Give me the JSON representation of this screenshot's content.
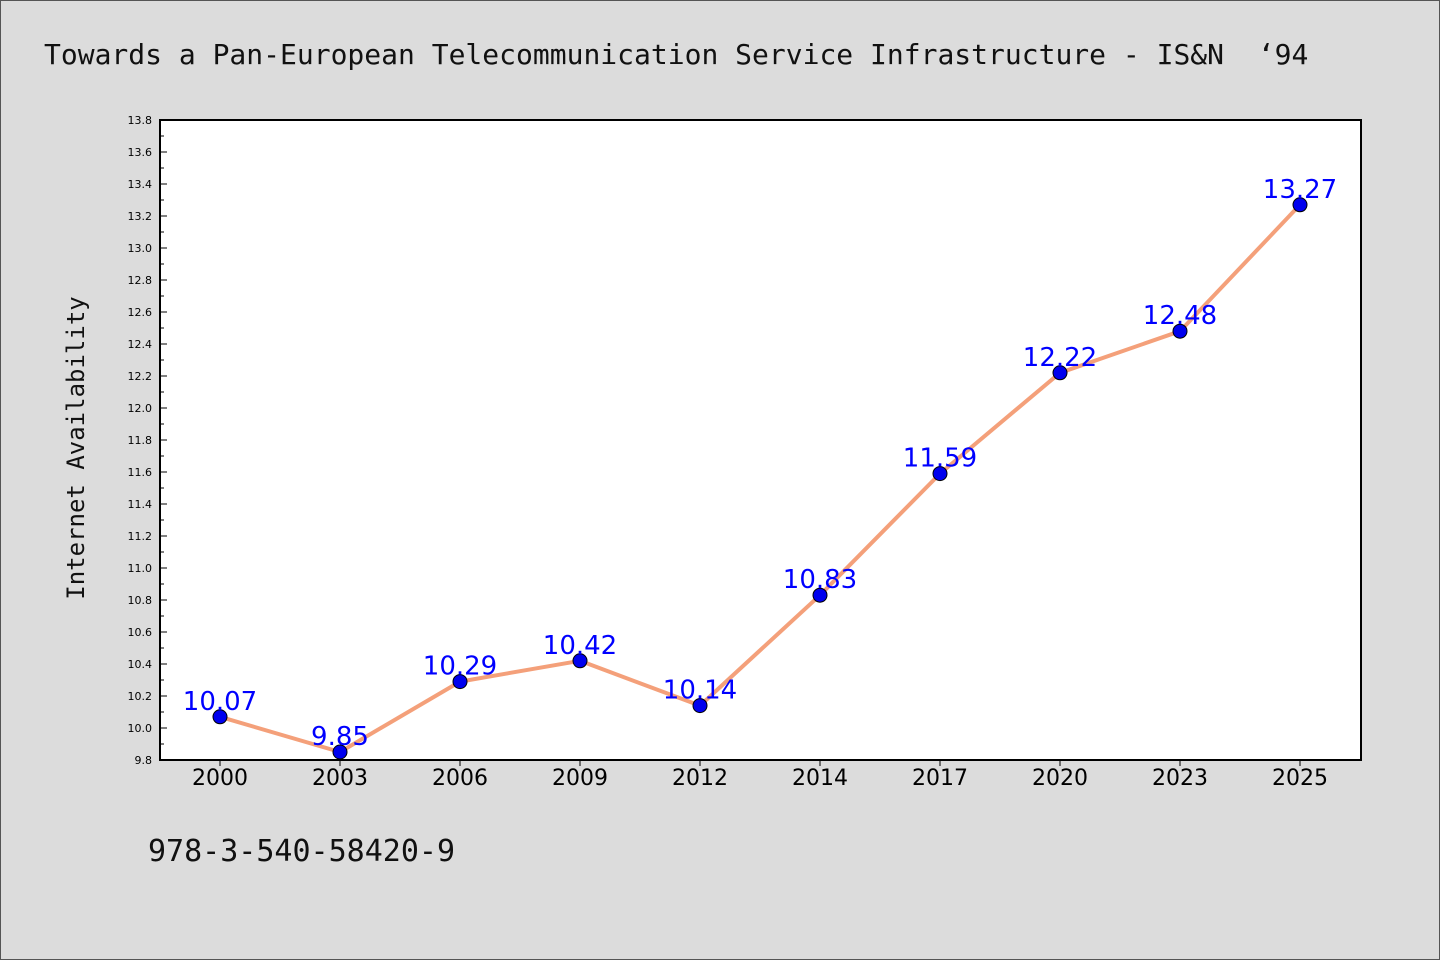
{
  "title": "Towards a Pan-European Telecommunication Service Infrastructure - IS&N  ‘94",
  "footer": "978-3-540-58420-9",
  "colors": {
    "line": "#f4a07a",
    "marker": "#0000ee",
    "label": "#0000ff",
    "background": "#dcdcdc"
  },
  "chart_data": {
    "type": "line",
    "title": "",
    "xlabel": "",
    "ylabel": "Internet Availability",
    "categories": [
      "2000",
      "2003",
      "2006",
      "2009",
      "2012",
      "2014",
      "2017",
      "2020",
      "2023",
      "2025"
    ],
    "values": [
      10.07,
      9.85,
      10.29,
      10.42,
      10.14,
      10.83,
      11.59,
      12.22,
      12.48,
      13.27
    ],
    "data_labels": [
      "10.07",
      "9.85",
      "10.29",
      "10.42",
      "10.14",
      "10.83",
      "11.59",
      "12.22",
      "12.48",
      "13.27"
    ],
    "ylim": [
      9.8,
      13.8
    ],
    "yticks": [
      "9.8",
      "10.0",
      "10.2",
      "10.4",
      "10.6",
      "10.8",
      "11.0",
      "11.2",
      "11.4",
      "11.6",
      "11.8",
      "12.0",
      "12.2",
      "12.4",
      "12.6",
      "12.8",
      "13.0",
      "13.2",
      "13.4",
      "13.6",
      "13.8"
    ],
    "grid": false,
    "legend": "none"
  }
}
